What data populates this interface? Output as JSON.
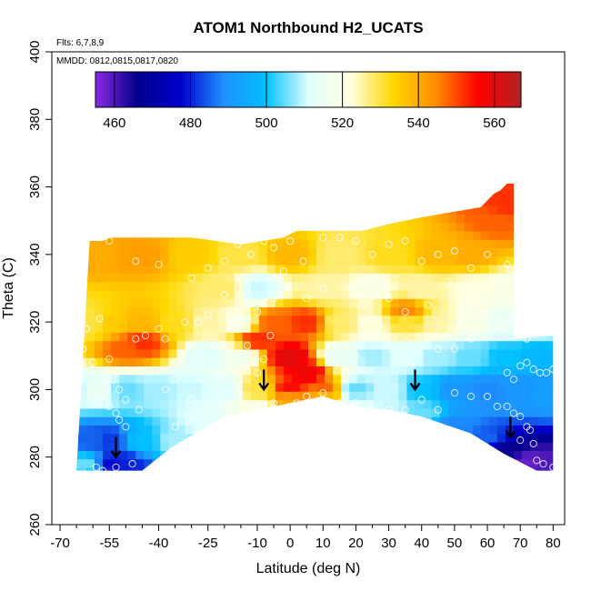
{
  "chart_data": {
    "type": "heatmap",
    "title": "ATOM1 Northbound H2_UCATS",
    "xlabel": "Latitude (deg N)",
    "ylabel": "Theta (C)",
    "flights_note": "Flts: 6,7,8,9",
    "dates_note": "MMDD: 0812,0815,0817,0820",
    "xlim": [
      -70,
      80
    ],
    "ylim": [
      260,
      400
    ],
    "x_ticks": [
      -70,
      -55,
      -40,
      -25,
      -10,
      0,
      10,
      20,
      30,
      40,
      50,
      60,
      70,
      80
    ],
    "x_minor_ticks": [
      -65,
      -60,
      -50,
      -45,
      -35,
      -30,
      -20,
      -15,
      -5,
      5,
      15,
      25,
      35,
      45,
      55,
      65,
      75
    ],
    "y_ticks": [
      260,
      280,
      300,
      320,
      340,
      360,
      380,
      400
    ],
    "colorbar": {
      "min": 455,
      "max": 567,
      "ticks": [
        460,
        480,
        500,
        520,
        540,
        560
      ],
      "colors": [
        "#8a2be2",
        "#00008b",
        "#0000cd",
        "#1e90ff",
        "#00bfff",
        "#e0ffff",
        "#ffffe0",
        "#ffd700",
        "#ff8c00",
        "#ff0000",
        "#b22222"
      ]
    },
    "ceiling": [
      [
        -61,
        344
      ],
      [
        -57,
        344
      ],
      [
        -55,
        345
      ],
      [
        -30,
        345
      ],
      [
        -15,
        343
      ],
      [
        -2,
        345
      ],
      [
        2,
        347
      ],
      [
        15,
        347
      ],
      [
        22,
        347
      ],
      [
        30,
        349
      ],
      [
        40,
        351
      ],
      [
        58,
        354
      ],
      [
        62,
        358
      ],
      [
        64,
        359
      ],
      [
        66,
        361
      ],
      [
        68,
        361
      ],
      [
        68,
        315
      ],
      [
        80,
        316
      ],
      [
        80,
        276
      ]
    ],
    "floor": [
      [
        -65,
        276
      ],
      [
        -45,
        276
      ],
      [
        -36,
        283
      ],
      [
        -20,
        292
      ],
      [
        -10,
        294
      ],
      [
        0,
        296
      ],
      [
        10,
        298
      ],
      [
        20,
        295
      ],
      [
        30,
        294
      ],
      [
        40,
        292
      ],
      [
        55,
        287
      ],
      [
        65,
        281
      ],
      [
        75,
        276
      ],
      [
        80,
        276
      ]
    ],
    "field_points": [
      [
        -65,
        320,
        528
      ],
      [
        -60,
        320,
        530
      ],
      [
        -55,
        320,
        535
      ],
      [
        -45,
        320,
        538
      ],
      [
        -35,
        320,
        532
      ],
      [
        -25,
        320,
        525
      ],
      [
        -15,
        320,
        520
      ],
      [
        -5,
        320,
        548
      ],
      [
        5,
        320,
        552
      ],
      [
        15,
        320,
        528
      ],
      [
        25,
        320,
        522
      ],
      [
        35,
        320,
        530
      ],
      [
        45,
        320,
        525
      ],
      [
        55,
        320,
        520
      ],
      [
        65,
        320,
        515
      ],
      [
        75,
        320,
        512
      ],
      [
        -60,
        340,
        540
      ],
      [
        -45,
        340,
        542
      ],
      [
        -30,
        340,
        535
      ],
      [
        -15,
        340,
        530
      ],
      [
        0,
        340,
        538
      ],
      [
        15,
        340,
        528
      ],
      [
        30,
        340,
        532
      ],
      [
        45,
        340,
        538
      ],
      [
        55,
        340,
        540
      ],
      [
        62,
        350,
        548
      ],
      [
        66,
        355,
        552
      ],
      [
        -65,
        300,
        510
      ],
      [
        -58,
        300,
        515
      ],
      [
        -50,
        300,
        505
      ],
      [
        -40,
        300,
        508
      ],
      [
        -30,
        300,
        510
      ],
      [
        -20,
        300,
        512
      ],
      [
        -10,
        300,
        530
      ],
      [
        0,
        300,
        555
      ],
      [
        10,
        300,
        548
      ],
      [
        20,
        300,
        505
      ],
      [
        30,
        300,
        510
      ],
      [
        40,
        300,
        500
      ],
      [
        50,
        300,
        490
      ],
      [
        60,
        300,
        488
      ],
      [
        70,
        300,
        490
      ],
      [
        78,
        300,
        492
      ],
      [
        -60,
        285,
        485
      ],
      [
        -55,
        285,
        482
      ],
      [
        -45,
        285,
        500
      ],
      [
        -35,
        285,
        508
      ],
      [
        -25,
        290,
        512
      ],
      [
        -10,
        295,
        520
      ],
      [
        0,
        297,
        540
      ],
      [
        10,
        298,
        538
      ],
      [
        20,
        296,
        512
      ],
      [
        30,
        294,
        510
      ],
      [
        40,
        293,
        505
      ],
      [
        50,
        289,
        488
      ],
      [
        60,
        285,
        485
      ],
      [
        65,
        282,
        465
      ],
      [
        72,
        278,
        458
      ],
      [
        78,
        277,
        460
      ],
      [
        -55,
        278,
        478
      ],
      [
        -50,
        278,
        480
      ],
      [
        -62,
        278,
        505
      ],
      [
        -50,
        312,
        548
      ],
      [
        -45,
        314,
        552
      ],
      [
        -10,
        315,
        552
      ],
      [
        0,
        310,
        560
      ],
      [
        5,
        305,
        558
      ],
      [
        35,
        323,
        545
      ],
      [
        -20,
        330,
        528
      ],
      [
        -10,
        330,
        510
      ],
      [
        10,
        330,
        525
      ],
      [
        25,
        330,
        520
      ],
      [
        40,
        330,
        525
      ],
      [
        55,
        330,
        522
      ],
      [
        66,
        330,
        520
      ],
      [
        -25,
        310,
        512
      ],
      [
        -15,
        310,
        518
      ],
      [
        15,
        310,
        515
      ],
      [
        25,
        310,
        508
      ],
      [
        35,
        310,
        512
      ],
      [
        45,
        310,
        508
      ],
      [
        55,
        310,
        505
      ],
      [
        65,
        310,
        500
      ],
      [
        75,
        310,
        498
      ]
    ],
    "obs_points": [
      [
        -65,
        316
      ],
      [
        -66,
        313
      ],
      [
        -63,
        312
      ],
      [
        -60,
        308
      ],
      [
        -62,
        318
      ],
      [
        -58,
        321
      ],
      [
        -55,
        309
      ],
      [
        -54,
        303
      ],
      [
        -52,
        300
      ],
      [
        -50,
        297
      ],
      [
        -56,
        303
      ],
      [
        -58,
        296
      ],
      [
        -55,
        295
      ],
      [
        -53,
        293
      ],
      [
        -52,
        291
      ],
      [
        -50,
        289
      ],
      [
        -46,
        294
      ],
      [
        -48,
        278
      ],
      [
        -53,
        277
      ],
      [
        -55,
        274
      ],
      [
        -57,
        276
      ],
      [
        -59,
        277
      ],
      [
        -38,
        315
      ],
      [
        -40,
        318
      ],
      [
        -44,
        316
      ],
      [
        -47,
        315
      ],
      [
        -32,
        320
      ],
      [
        -28,
        320
      ],
      [
        -25,
        322
      ],
      [
        -20,
        323
      ],
      [
        -18,
        318
      ],
      [
        -16,
        320
      ],
      [
        -23,
        313
      ],
      [
        -27,
        309
      ],
      [
        -22,
        305
      ],
      [
        -35,
        303
      ],
      [
        -38,
        300
      ],
      [
        -30,
        297
      ],
      [
        -25,
        293
      ],
      [
        -35,
        289
      ],
      [
        -20,
        295
      ],
      [
        -55,
        344
      ],
      [
        -47,
        338
      ],
      [
        -40,
        337
      ],
      [
        -30,
        333
      ],
      [
        -25,
        336
      ],
      [
        -20,
        338
      ],
      [
        -16,
        343
      ],
      [
        -12,
        340
      ],
      [
        -8,
        344
      ],
      [
        -5,
        342
      ],
      [
        -2,
        335
      ],
      [
        0,
        344
      ],
      [
        4,
        338
      ],
      [
        10,
        345
      ],
      [
        15,
        345
      ],
      [
        20,
        344
      ],
      [
        25,
        340
      ],
      [
        30,
        343
      ],
      [
        35,
        344
      ],
      [
        40,
        338
      ],
      [
        45,
        340
      ],
      [
        50,
        341
      ],
      [
        55,
        336
      ],
      [
        60,
        340
      ],
      [
        66,
        337
      ],
      [
        70,
        343
      ],
      [
        -20,
        328
      ],
      [
        -15,
        332
      ],
      [
        -10,
        323
      ],
      [
        -5,
        327
      ],
      [
        5,
        327
      ],
      [
        10,
        330
      ],
      [
        18,
        330
      ],
      [
        22,
        325
      ],
      [
        30,
        327
      ],
      [
        35,
        323
      ],
      [
        42,
        325
      ],
      [
        48,
        332
      ],
      [
        52,
        325
      ],
      [
        58,
        322
      ],
      [
        62,
        320
      ],
      [
        68,
        322
      ],
      [
        70,
        325
      ],
      [
        72,
        335
      ],
      [
        75,
        340
      ],
      [
        76,
        336
      ],
      [
        -5,
        296
      ],
      [
        2,
        296
      ],
      [
        5,
        298
      ],
      [
        10,
        299
      ],
      [
        15,
        296
      ],
      [
        20,
        296
      ],
      [
        25,
        294
      ],
      [
        30,
        294
      ],
      [
        35,
        294
      ],
      [
        40,
        297
      ],
      [
        45,
        294
      ],
      [
        50,
        299
      ],
      [
        55,
        298
      ],
      [
        60,
        298
      ],
      [
        63,
        295
      ],
      [
        66,
        295
      ],
      [
        68,
        293
      ],
      [
        70,
        292
      ],
      [
        72,
        289
      ],
      [
        73,
        288
      ],
      [
        70,
        285
      ],
      [
        74,
        284
      ],
      [
        75,
        279
      ],
      [
        77,
        278
      ],
      [
        80,
        277
      ],
      [
        -10,
        305
      ],
      [
        -8,
        309
      ],
      [
        -13,
        313
      ],
      [
        -6,
        316
      ],
      [
        20,
        310
      ],
      [
        25,
        315
      ],
      [
        28,
        318
      ],
      [
        35,
        314
      ],
      [
        45,
        312
      ],
      [
        50,
        312
      ],
      [
        55,
        315
      ],
      [
        60,
        316
      ],
      [
        65,
        318
      ],
      [
        70,
        317
      ],
      [
        72,
        315
      ],
      [
        66,
        305
      ],
      [
        68,
        303
      ],
      [
        70,
        307
      ],
      [
        72,
        308
      ],
      [
        74,
        306
      ],
      [
        76,
        305
      ],
      [
        78,
        305
      ],
      [
        80,
        306
      ]
    ],
    "arrows": [
      [
        -53,
        280
      ],
      [
        -8,
        300
      ],
      [
        38,
        300
      ],
      [
        67,
        286
      ]
    ]
  }
}
